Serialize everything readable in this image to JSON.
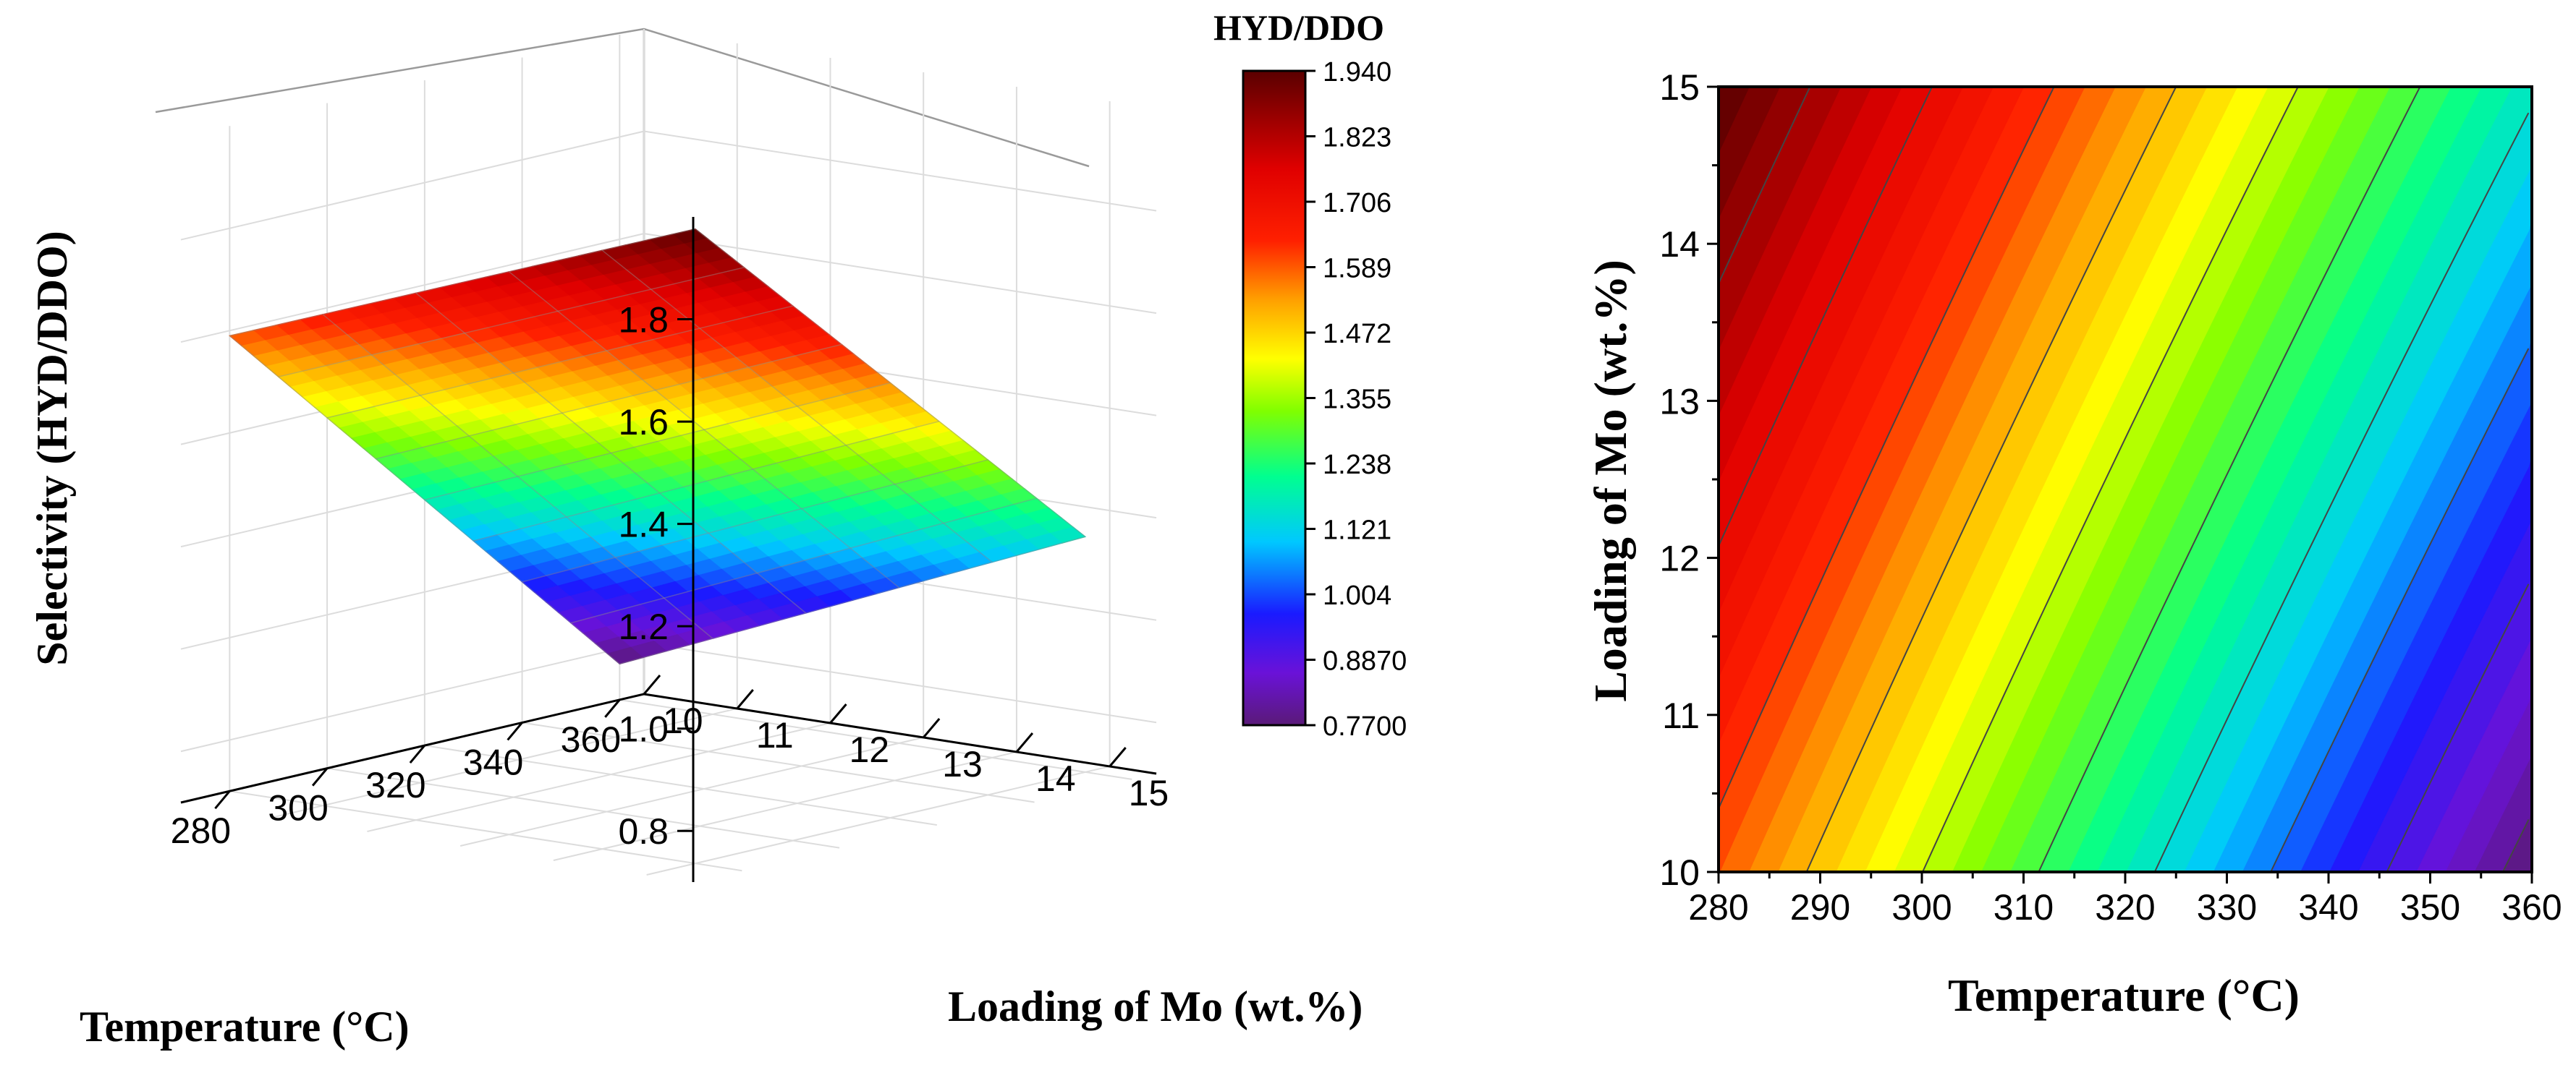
{
  "chart_data": [
    {
      "type": "surface3d",
      "title": "",
      "xlabel": "Temperature (°C)",
      "ylabel": "Loading of Mo (wt.%)",
      "zlabel": "Selectivity (HYD/DDO)",
      "x_ticks": [
        "280",
        "300",
        "320",
        "340",
        "360"
      ],
      "y_ticks": [
        "10",
        "11",
        "12",
        "13",
        "14",
        "15"
      ],
      "z_ticks": [
        "0.8",
        "1.0",
        "1.2",
        "1.4",
        "1.6",
        "1.8"
      ],
      "x_range": [
        270,
        365
      ],
      "y_range": [
        10,
        15.5
      ],
      "z_range": [
        0.7,
        2.0
      ],
      "corners": [
        {
          "temperature": 280,
          "loading": 10,
          "selectivity": 1.59
        },
        {
          "temperature": 280,
          "loading": 15,
          "selectivity": 1.94
        },
        {
          "temperature": 360,
          "loading": 10,
          "selectivity": 0.77
        },
        {
          "temperature": 360,
          "loading": 15,
          "selectivity": 1.16
        }
      ],
      "colorbar": {
        "title": "HYD/DDO",
        "ticks": [
          "1.940",
          "1.823",
          "1.706",
          "1.589",
          "1.472",
          "1.355",
          "1.238",
          "1.121",
          "1.004",
          "0.8870",
          "0.7700"
        ],
        "range": [
          0.77,
          1.94
        ]
      }
    },
    {
      "type": "contour",
      "title": "",
      "xlabel": "Temperature (°C)",
      "ylabel": "Loading of Mo (wt.%)",
      "x_ticks": [
        "280",
        "290",
        "300",
        "310",
        "320",
        "330",
        "340",
        "350",
        "360"
      ],
      "y_ticks": [
        "10",
        "11",
        "12",
        "13",
        "14",
        "15"
      ],
      "xlim": [
        280,
        360
      ],
      "ylim": [
        10,
        15
      ],
      "z_range": [
        0.77,
        1.94
      ],
      "levels": 40
    }
  ]
}
